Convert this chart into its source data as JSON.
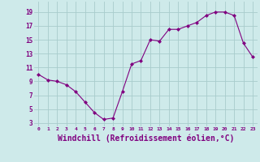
{
  "hours": [
    0,
    1,
    2,
    3,
    4,
    5,
    6,
    7,
    8,
    9,
    10,
    11,
    12,
    13,
    14,
    15,
    16,
    17,
    18,
    19,
    20,
    21,
    22,
    23
  ],
  "values": [
    10.0,
    9.2,
    9.0,
    8.5,
    7.5,
    6.0,
    4.5,
    3.5,
    3.7,
    7.5,
    11.5,
    12.0,
    15.0,
    14.8,
    16.5,
    16.5,
    17.0,
    17.5,
    18.5,
    19.0,
    19.0,
    18.5,
    14.5,
    12.5
  ],
  "line_color": "#800080",
  "marker": "D",
  "marker_size": 2,
  "bg_color": "#ceeaea",
  "grid_color": "#a8cccc",
  "tick_color": "#800080",
  "xlabel": "Windchill (Refroidissement éolien,°C)",
  "xlabel_fontsize": 7,
  "ylabel_ticks": [
    3,
    5,
    7,
    9,
    11,
    13,
    15,
    17,
    19
  ],
  "xlim": [
    -0.5,
    23.5
  ],
  "ylim": [
    2.5,
    20.5
  ]
}
